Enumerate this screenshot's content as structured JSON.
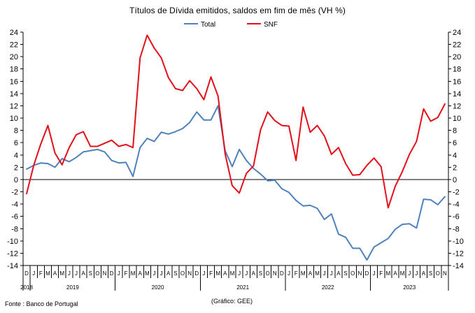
{
  "chart_data": {
    "type": "line",
    "title": "Títulos de Dívida emitidos, saldos em fim de mês  (VH %)",
    "xlabel": "",
    "ylabel": "",
    "ylim": [
      -14,
      24
    ],
    "yticks": [
      -14,
      -12,
      -10,
      -8,
      -6,
      -4,
      -2,
      0,
      2,
      4,
      6,
      8,
      10,
      12,
      14,
      16,
      18,
      20,
      22,
      24
    ],
    "right_axis": true,
    "grid": false,
    "legend_position": "top-center",
    "months": [
      "D",
      "J",
      "F",
      "M",
      "A",
      "M",
      "J",
      "J",
      "A",
      "S",
      "O",
      "N",
      "D",
      "J",
      "F",
      "M",
      "A",
      "M",
      "J",
      "J",
      "A",
      "S",
      "O",
      "N",
      "D",
      "J",
      "F",
      "M",
      "A",
      "M",
      "J",
      "J",
      "A",
      "S",
      "O",
      "N",
      "D",
      "J",
      "F",
      "M",
      "A",
      "M",
      "J",
      "J",
      "A",
      "S",
      "O",
      "N",
      "D",
      "J",
      "F",
      "M",
      "A",
      "M",
      "J",
      "J",
      "A",
      "S",
      "O",
      "N"
    ],
    "years": [
      {
        "label": "2018",
        "start": 0,
        "end": 0
      },
      {
        "label": "2019",
        "start": 1,
        "end": 12
      },
      {
        "label": "2020",
        "start": 13,
        "end": 24
      },
      {
        "label": "2021",
        "start": 25,
        "end": 36
      },
      {
        "label": "2022",
        "start": 37,
        "end": 48
      },
      {
        "label": "2023",
        "start": 49,
        "end": 59
      }
    ],
    "series": [
      {
        "name": "Total",
        "color": "#4f81bd",
        "values": [
          1.7,
          2.3,
          2.7,
          2.6,
          2.0,
          3.4,
          2.9,
          3.6,
          4.5,
          4.7,
          4.9,
          4.5,
          3.1,
          2.7,
          2.8,
          0.5,
          5.2,
          6.7,
          6.2,
          7.7,
          7.4,
          7.8,
          8.3,
          9.3,
          11.0,
          9.7,
          9.7,
          12.0,
          4.7,
          2.1,
          4.9,
          3.1,
          1.8,
          0.9,
          -0.2,
          -0.1,
          -1.5,
          -2.1,
          -3.4,
          -4.3,
          -4.2,
          -4.7,
          -6.5,
          -5.6,
          -8.9,
          -9.4,
          -11.2,
          -11.2,
          -13.1,
          -11.0,
          -10.3,
          -9.6,
          -8.1,
          -7.3,
          -7.2,
          -7.9,
          -3.2,
          -3.3,
          -4.1,
          -2.8
        ]
      },
      {
        "name": "SNF",
        "color": "#e3101a",
        "values": [
          -2.3,
          2.3,
          5.8,
          8.8,
          4.3,
          2.4,
          5.2,
          7.3,
          7.8,
          5.4,
          5.4,
          5.9,
          6.4,
          5.4,
          5.7,
          5.2,
          19.8,
          23.5,
          21.4,
          19.8,
          16.6,
          14.8,
          14.5,
          16.1,
          14.8,
          13.0,
          16.7,
          13.6,
          4.2,
          -1.0,
          -2.2,
          1.0,
          2.2,
          8.1,
          11.0,
          9.6,
          8.8,
          8.7,
          3.1,
          11.8,
          7.7,
          8.8,
          7.1,
          4.1,
          5.2,
          2.6,
          0.7,
          0.8,
          2.3,
          3.5,
          2.1,
          -4.6,
          -1.1,
          1.3,
          4.1,
          6.2,
          11.5,
          9.5,
          10.1,
          12.3
        ]
      }
    ]
  },
  "footer": {
    "source": "Fonte : Banco de Portugal",
    "credit": "(Gráfico: GEE)"
  }
}
